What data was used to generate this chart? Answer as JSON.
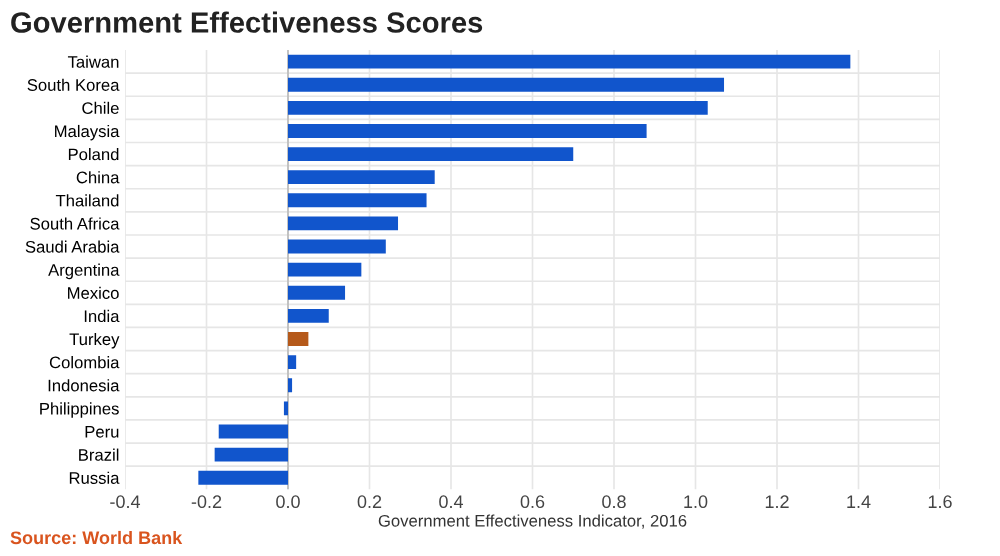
{
  "chart_data": {
    "type": "bar",
    "orientation": "horizontal",
    "title": "Government Effectiveness Scores",
    "xlabel": "Government Effectiveness Indicator, 2016",
    "categories": [
      "Taiwan",
      "South Korea",
      "Chile",
      "Malaysia",
      "Poland",
      "China",
      "Thailand",
      "South Africa",
      "Saudi Arabia",
      "Argentina",
      "Mexico",
      "India",
      "Turkey",
      "Colombia",
      "Indonesia",
      "Philippines",
      "Peru",
      "Brazil",
      "Russia"
    ],
    "values": [
      1.38,
      1.07,
      1.03,
      0.88,
      0.7,
      0.36,
      0.34,
      0.27,
      0.24,
      0.18,
      0.14,
      0.1,
      0.05,
      0.02,
      0.01,
      -0.01,
      -0.17,
      -0.18,
      -0.22
    ],
    "colors": [
      "#1155cc",
      "#1155cc",
      "#1155cc",
      "#1155cc",
      "#1155cc",
      "#1155cc",
      "#1155cc",
      "#1155cc",
      "#1155cc",
      "#1155cc",
      "#1155cc",
      "#1155cc",
      "#b5591a",
      "#1155cc",
      "#1155cc",
      "#1155cc",
      "#1155cc",
      "#1155cc",
      "#1155cc"
    ],
    "xlim": [
      -0.4,
      1.6
    ],
    "xticks": [
      {
        "value": -0.4,
        "label": "-0.4"
      },
      {
        "value": -0.2,
        "label": "-0.2"
      },
      {
        "value": 0,
        "label": "0.0"
      },
      {
        "value": 0.2,
        "label": "0.2"
      },
      {
        "value": 0.4,
        "label": "0.4"
      },
      {
        "value": 0.6,
        "label": "0.6"
      },
      {
        "value": 0.8,
        "label": "0.8"
      },
      {
        "value": 1.0,
        "label": "1.0"
      },
      {
        "value": 1.2,
        "label": "1.2"
      },
      {
        "value": 1.4,
        "label": "1.4"
      },
      {
        "value": 1.6,
        "label": "1.6"
      }
    ],
    "grid": true,
    "annotations": [
      "Source: World Bank"
    ]
  }
}
